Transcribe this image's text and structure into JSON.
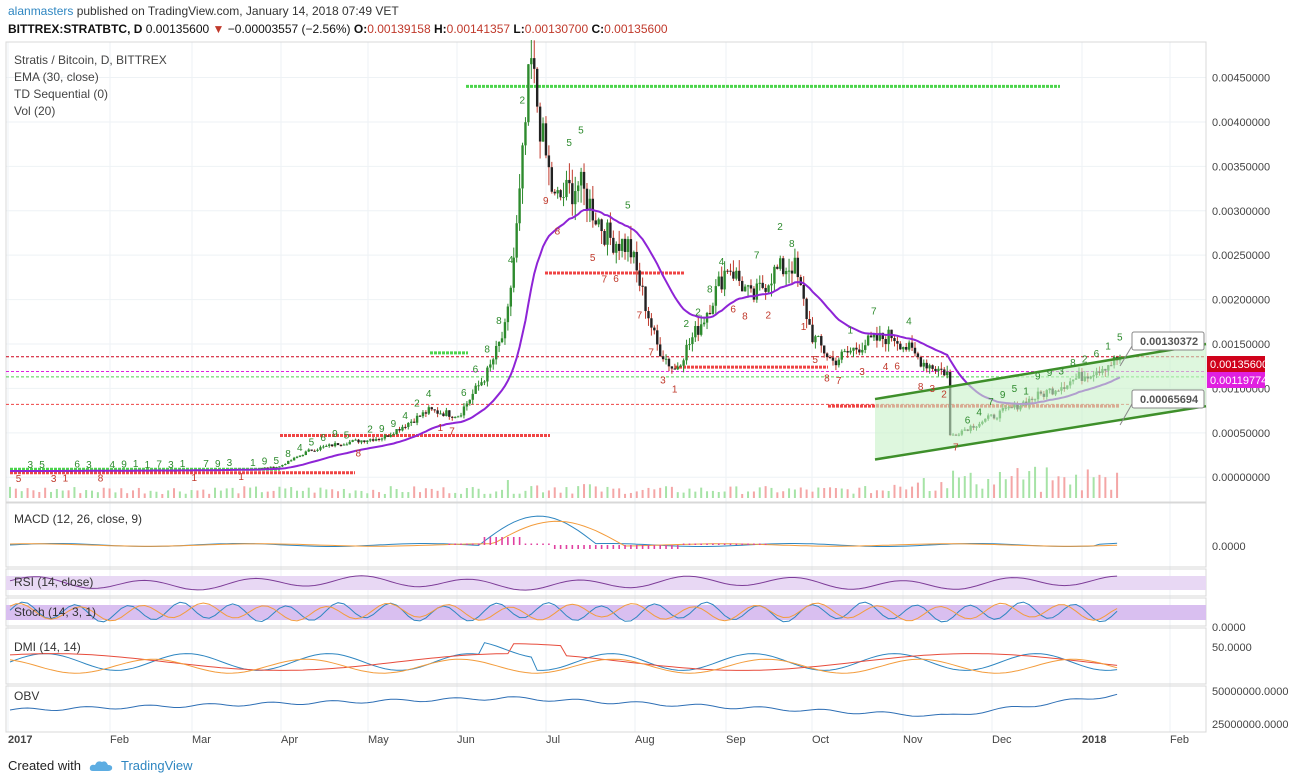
{
  "header": {
    "author": "alanmasters",
    "published_text": " published on TradingView.com, January 14, 2018 07:49 VET",
    "symbol": "BITTREX:STRATBTC, D",
    "last": "0.00135600",
    "change": "−0.00003557 (−2.56%)",
    "o_label": "O:",
    "o_value": "0.00139158",
    "h_label": "H:",
    "h_value": "0.00141357",
    "l_label": "L:",
    "l_value": "0.00130700",
    "c_label": "C:",
    "c_value": "0.00135600"
  },
  "legend": {
    "title": "Stratis / Bitcoin, D, BITTREX",
    "ema": "EMA (30, close)",
    "td": "TD Sequential (0)",
    "vol": "Vol (20)"
  },
  "price_axis": [
    "0.00450000",
    "0.00400000",
    "0.00350000",
    "0.00300000",
    "0.00250000",
    "0.00200000",
    "0.00150000",
    "0.00100000",
    "0.00050000",
    "0.00000000"
  ],
  "price_badges": {
    "upper_channel": "0.00130372",
    "last_price": "0.00135600",
    "ema_value": "0.00119774",
    "lower_channel": "0.00065694"
  },
  "panels": {
    "macd": {
      "label": "MACD (12, 26, close, 9)",
      "axis": "0.0000"
    },
    "rsi": {
      "label": "RSI (14, close)"
    },
    "stoch": {
      "label": "Stoch (14, 3, 1)",
      "axis": "0.0000"
    },
    "dmi": {
      "label": "DMI (14, 14)",
      "axis": "50.0000"
    },
    "obv": {
      "label": "OBV",
      "axis_top": "50000000.0000",
      "axis_bottom": "25000000.0000"
    }
  },
  "time_axis": [
    "2017",
    "Feb",
    "Mar",
    "Apr",
    "May",
    "Jun",
    "Jul",
    "Aug",
    "Sep",
    "Oct",
    "Nov",
    "Dec",
    "2018",
    "Feb"
  ],
  "footer": {
    "created_with": "Created with",
    "brand": "TradingView"
  },
  "colors": {
    "up": "#2e8b2e",
    "down": "#c0392b",
    "ema": "#8e24d6",
    "support": "#4cd44c",
    "resistance": "#ef4444",
    "channel": "#3e8f2a",
    "accent": "#2e86c1"
  },
  "chart_data": {
    "type": "candlestick",
    "series_price": [
      {
        "month": "2017-01",
        "close": 8e-05
      },
      {
        "month": "2017-02",
        "close": 8e-05
      },
      {
        "month": "2017-03",
        "close": 9e-05
      },
      {
        "month": "2017-04",
        "close": 0.0004
      },
      {
        "month": "2017-05",
        "close": 0.00075
      },
      {
        "month": "2017-06",
        "close": 0.0029
      },
      {
        "month": "2017-07",
        "close": 0.0014
      },
      {
        "month": "2017-08",
        "close": 0.00205
      },
      {
        "month": "2017-09",
        "close": 0.0012
      },
      {
        "month": "2017-10",
        "close": 0.00075
      },
      {
        "month": "2017-11",
        "close": 0.00045
      },
      {
        "month": "2017-12",
        "close": 0.0006
      },
      {
        "month": "2018-01",
        "close": 0.00136
      }
    ],
    "ylim": [
      0,
      0.0048
    ],
    "peak_high": 0.0047
  }
}
